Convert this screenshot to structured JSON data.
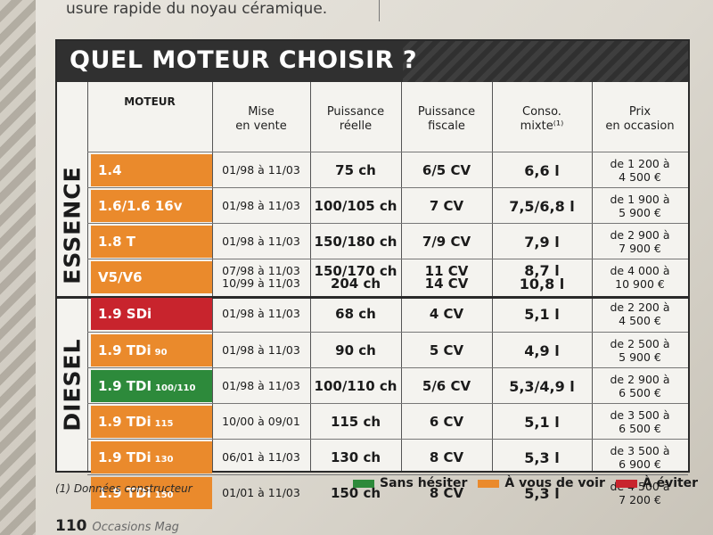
{
  "intro_text": "usure rapide du noyau céramique.",
  "title": "QUEL MOTEUR CHOISIR ?",
  "headers": {
    "moteur": "MOTEUR",
    "mise": "Mise\nen vente",
    "puissance": "Puissance\nréelle",
    "fiscale": "Puissance\nfiscale",
    "conso": "Conso.\nmixte⁽¹⁾",
    "prix": "Prix\nen occasion"
  },
  "sections": {
    "essence": "ESSENCE",
    "diesel": "DIESEL"
  },
  "rows": [
    {
      "model": "1.4",
      "sub": "",
      "color": "orange",
      "date": "01/98 à 11/03",
      "puiss": "75 ch",
      "fisc": "6/5 CV",
      "conso": "6,6 l",
      "prix": "de 1 200 à\n4 500 €"
    },
    {
      "model": "1.6/1.6 16v",
      "sub": "",
      "color": "orange",
      "date": "01/98 à 11/03",
      "puiss": "100/105 ch",
      "fisc": "7 CV",
      "conso": "7,5/6,8 l",
      "prix": "de 1 900 à\n5 900 €"
    },
    {
      "model": "1.8 T",
      "sub": "",
      "color": "orange",
      "date": "01/98 à 11/03",
      "puiss": "150/180 ch",
      "fisc": "7/9 CV",
      "conso": "7,9 l",
      "prix": "de 2 900 à\n7 900 €"
    },
    {
      "model": "V5/V6",
      "sub": "",
      "color": "orange",
      "date": "07/98 à 11/03\n10/99 à 11/03",
      "puiss": "150/170 ch\n204 ch",
      "fisc": "11 CV\n14 CV",
      "conso": "8,7 l\n10,8 l",
      "prix": "de 4 000 à\n10 900 €"
    },
    {
      "model": "1.9 SDi",
      "sub": "",
      "color": "red",
      "date": "01/98 à 11/03",
      "puiss": "68 ch",
      "fisc": "4 CV",
      "conso": "5,1 l",
      "prix": "de 2 200 à\n4 500 €"
    },
    {
      "model": "1.9 TDi",
      "sub": "90",
      "color": "orange",
      "date": "01/98 à 11/03",
      "puiss": "90 ch",
      "fisc": "5 CV",
      "conso": "4,9 l",
      "prix": "de 2 500 à\n5 900 €"
    },
    {
      "model": "1.9 TDI",
      "sub": "100/110",
      "color": "green",
      "date": "01/98 à 11/03",
      "puiss": "100/110 ch",
      "fisc": "5/6 CV",
      "conso": "5,3/4,9 l",
      "prix": "de 2 900 à\n6 500 €"
    },
    {
      "model": "1.9 TDi",
      "sub": "115",
      "color": "orange",
      "date": "10/00 à 09/01",
      "puiss": "115 ch",
      "fisc": "6 CV",
      "conso": "5,1 l",
      "prix": "de 3 500 à\n6 500 €"
    },
    {
      "model": "1.9 TDi",
      "sub": "130",
      "color": "orange",
      "date": "06/01 à 11/03",
      "puiss": "130 ch",
      "fisc": "8 CV",
      "conso": "5,3 l",
      "prix": "de 3 500 à\n6 900 €"
    },
    {
      "model": "1.9 TDi",
      "sub": "150",
      "color": "orange",
      "date": "01/01 à 11/03",
      "puiss": "150 ch",
      "fisc": "8 CV",
      "conso": "5,3 l",
      "prix": "de 4 500 à\n7 200 €"
    }
  ],
  "footnote": "(1) Données constructeur",
  "legend": [
    {
      "label": "Sans hésiter",
      "color": "#2d8a3b"
    },
    {
      "label": "À vous de voir",
      "color": "#ea8a2c"
    },
    {
      "label": "À éviter",
      "color": "#c8242d"
    }
  ],
  "page_number": "110",
  "magazine": "Occasions Mag"
}
